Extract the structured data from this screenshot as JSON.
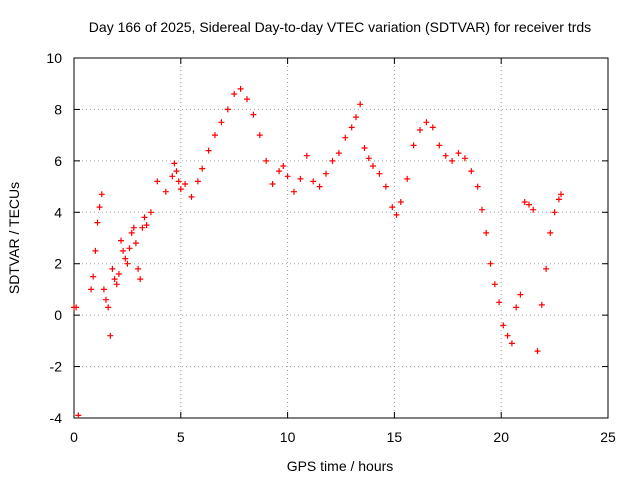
{
  "chart_data": {
    "type": "scatter",
    "title": "Day 166 of 2025, Sidereal Day-to-day VTEC variation (SDTVAR) for receiver trds",
    "xlabel": "GPS time / hours",
    "ylabel": "SDTVAR / TECUs",
    "xlim": [
      0,
      25
    ],
    "ylim": [
      -4,
      10
    ],
    "xticks": [
      0,
      5,
      10,
      15,
      20,
      25
    ],
    "yticks": [
      -4,
      -2,
      0,
      2,
      4,
      6,
      8,
      10
    ],
    "grid": true,
    "marker": "+",
    "color": "#ff0000",
    "series": [
      {
        "name": "SDTVAR",
        "x": [
          0.0,
          0.1,
          0.2,
          0.8,
          0.9,
          1.0,
          1.1,
          1.2,
          1.3,
          1.4,
          1.5,
          1.6,
          1.7,
          1.8,
          1.9,
          2.0,
          2.1,
          2.2,
          2.3,
          2.4,
          2.5,
          2.6,
          2.7,
          2.8,
          2.9,
          3.0,
          3.1,
          3.2,
          3.3,
          3.4,
          3.6,
          3.9,
          4.3,
          4.6,
          4.7,
          4.8,
          4.9,
          5.0,
          5.2,
          5.5,
          5.8,
          6.0,
          6.3,
          6.6,
          6.9,
          7.2,
          7.5,
          7.8,
          8.1,
          8.4,
          8.7,
          9.0,
          9.3,
          9.6,
          9.8,
          10.0,
          10.3,
          10.6,
          10.9,
          11.2,
          11.5,
          11.8,
          12.1,
          12.4,
          12.7,
          13.0,
          13.2,
          13.4,
          13.6,
          13.8,
          14.0,
          14.3,
          14.6,
          14.9,
          15.1,
          15.3,
          15.6,
          15.9,
          16.2,
          16.5,
          16.8,
          17.1,
          17.4,
          17.7,
          18.0,
          18.3,
          18.6,
          18.9,
          19.1,
          19.3,
          19.5,
          19.7,
          19.9,
          20.1,
          20.3,
          20.5,
          20.7,
          20.9,
          21.1,
          21.3,
          21.5,
          21.7,
          21.9,
          22.1,
          22.3,
          22.5,
          22.7,
          22.8
        ],
        "y": [
          0.3,
          0.3,
          -3.9,
          1.0,
          1.5,
          2.5,
          3.6,
          4.2,
          4.7,
          1.0,
          0.6,
          0.3,
          -0.8,
          1.8,
          1.4,
          1.2,
          1.6,
          2.9,
          2.5,
          2.2,
          2.0,
          2.6,
          3.2,
          3.4,
          2.8,
          1.8,
          1.4,
          3.4,
          3.8,
          3.5,
          4.0,
          5.2,
          4.8,
          5.4,
          5.9,
          5.6,
          5.2,
          4.9,
          5.1,
          4.6,
          5.2,
          5.7,
          6.4,
          7.0,
          7.5,
          8.0,
          8.6,
          8.8,
          8.4,
          7.8,
          7.0,
          6.0,
          5.1,
          5.6,
          5.8,
          5.4,
          4.8,
          5.3,
          6.2,
          5.2,
          5.0,
          5.5,
          6.0,
          6.3,
          6.9,
          7.3,
          7.7,
          8.2,
          6.5,
          6.1,
          5.8,
          5.5,
          5.0,
          4.2,
          3.9,
          4.4,
          5.3,
          6.6,
          7.2,
          7.5,
          7.3,
          6.6,
          6.2,
          6.0,
          6.3,
          6.1,
          5.6,
          5.0,
          4.1,
          3.2,
          2.0,
          1.2,
          0.5,
          -0.4,
          -0.8,
          -1.1,
          0.3,
          0.8,
          4.4,
          4.3,
          4.1,
          -1.4,
          0.4,
          1.8,
          3.2,
          4.0,
          4.5,
          4.7
        ]
      }
    ]
  }
}
